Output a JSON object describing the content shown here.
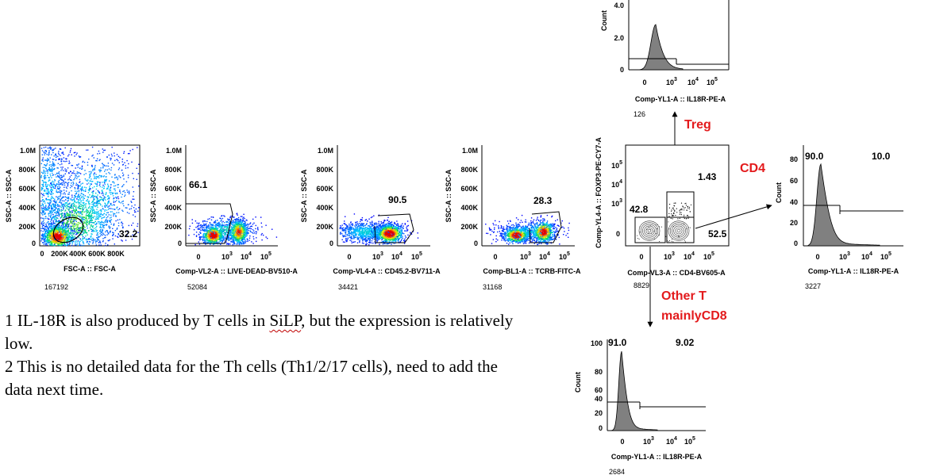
{
  "panels": {
    "p1": {
      "type": "density-scatter",
      "xlabel": "FSC-A :: FSC-A",
      "ylabel": "SSC-A :: SSC-A",
      "xticks": [
        "0",
        "200K",
        "400K",
        "600K",
        "800K"
      ],
      "yticks": [
        "0",
        "200K",
        "400K",
        "600K",
        "800K",
        "1.0M"
      ],
      "gate_label": "32.2",
      "event_count": "167192"
    },
    "p2": {
      "type": "density-scatter",
      "xlabel": "Comp-VL2-A :: LIVE-DEAD-BV510-A",
      "ylabel": "SSC-A :: SSC-A",
      "xticks": [
        "0",
        "10",
        "10",
        "10"
      ],
      "xexps": [
        "",
        "3",
        "4",
        "5"
      ],
      "yticks": [
        "0",
        "200K",
        "400K",
        "600K",
        "800K",
        "1.0M"
      ],
      "gate_label": "66.1",
      "event_count": "52084"
    },
    "p3": {
      "type": "density-scatter",
      "xlabel": "Comp-VL4-A :: CD45.2-BV711-A",
      "ylabel": "SSC-A :: SSC-A",
      "xticks": [
        "0",
        "10",
        "10",
        "10"
      ],
      "xexps": [
        "",
        "3",
        "4",
        "5"
      ],
      "yticks": [
        "0",
        "200K",
        "400K",
        "600K",
        "800K",
        "1.0M"
      ],
      "gate_label": "90.5",
      "event_count": "34421"
    },
    "p4": {
      "type": "density-scatter",
      "xlabel": "Comp-BL1-A :: TCRB-FITC-A",
      "ylabel": "SSC-A :: SSC-A",
      "xticks": [
        "0",
        "10",
        "10",
        "10"
      ],
      "xexps": [
        "",
        "3",
        "4",
        "5"
      ],
      "yticks": [
        "0",
        "200K",
        "400K",
        "600K",
        "800K",
        "1.0M"
      ],
      "gate_label": "28.3",
      "event_count": "31168"
    },
    "p5": {
      "type": "contour",
      "xlabel": "Comp-VL3-A :: CD4-BV605-A",
      "ylabel": "Comp-YL4-A :: FOXP3-PE-CY7-A",
      "xticks": [
        "0",
        "10",
        "10",
        "10"
      ],
      "xexps": [
        "",
        "3",
        "4",
        "5"
      ],
      "yticks": [
        "0",
        "10",
        "10",
        "10"
      ],
      "yexps": [
        "",
        "3",
        "4",
        "5"
      ],
      "q_top": "1.43",
      "q_left": "42.8",
      "q_right": "52.5",
      "event_count": "8829"
    },
    "h_treg": {
      "type": "histogram",
      "xlabel": "Comp-YL1-A :: IL18R-PE-A",
      "ylabel": "Count",
      "xticks": [
        "0",
        "10",
        "10",
        "10"
      ],
      "xexps": [
        "",
        "3",
        "4",
        "5"
      ],
      "yticks": [
        "0",
        "2.0",
        "4.0"
      ],
      "event_count": "126"
    },
    "h_cd4": {
      "type": "histogram",
      "xlabel": "Comp-YL1-A :: IL18R-PE-A",
      "ylabel": "Count",
      "xticks": [
        "0",
        "10",
        "10",
        "10"
      ],
      "xexps": [
        "",
        "3",
        "4",
        "5"
      ],
      "yticks": [
        "0",
        "20",
        "40",
        "60",
        "80"
      ],
      "neg": "90.0",
      "pos": "10.0",
      "event_count": "3227"
    },
    "h_other": {
      "type": "histogram",
      "xlabel": "Comp-YL1-A :: IL18R-PE-A",
      "ylabel": "Count",
      "xticks": [
        "0",
        "10",
        "10",
        "10"
      ],
      "xexps": [
        "",
        "3",
        "4",
        "5"
      ],
      "yticks": [
        "0",
        "20",
        "40",
        "60",
        "80",
        "100"
      ],
      "neg": "91.0",
      "pos": "9.02",
      "event_count": "2684"
    }
  },
  "arrows": {
    "treg": "Treg",
    "cd4": "CD4",
    "other_line1": "Other T",
    "other_line2": "mainlyCD8"
  },
  "notes": {
    "line1_pre": "1 IL-18R is also produced by T cells in ",
    "line1_squig": "SiLP",
    "line1_post": ", but the expression is relatively low.",
    "line2": "2 This is no detailed data for the Th cells (Th1/2/17 cells), need to add the data next time."
  },
  "colors": {
    "annotation_red": "#e31a1c",
    "hist_fill": "#808080",
    "gate": "#000000"
  }
}
